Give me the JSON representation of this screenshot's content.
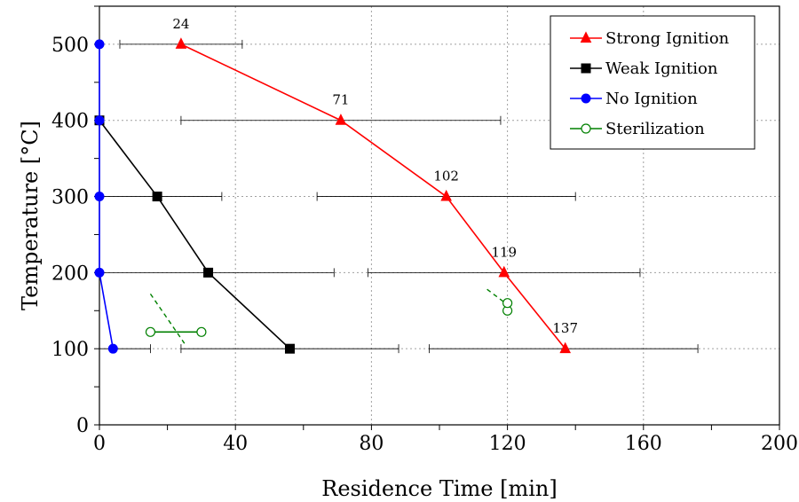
{
  "chart_data": {
    "type": "line",
    "title": "",
    "xlabel": "Residence Time [min]",
    "ylabel": "Temperature [°C]",
    "xlim": [
      0,
      200
    ],
    "ylim": [
      0,
      550
    ],
    "xticks": [
      0,
      40,
      80,
      120,
      160,
      200
    ],
    "yticks": [
      0,
      100,
      200,
      300,
      400,
      500
    ],
    "grid": true,
    "legend_position": "top-right",
    "series": [
      {
        "name": "Strong Ignition",
        "color": "#ff0000",
        "marker": "triangle",
        "points": [
          {
            "x": 24,
            "y": 500,
            "label": "24",
            "xerr": [
              6,
              42
            ]
          },
          {
            "x": 71,
            "y": 400,
            "label": "71",
            "xerr": [
              24,
              118
            ]
          },
          {
            "x": 102,
            "y": 300,
            "label": "102",
            "xerr": [
              64,
              140
            ]
          },
          {
            "x": 119,
            "y": 200,
            "label": "119",
            "xerr": [
              79,
              159
            ]
          },
          {
            "x": 137,
            "y": 100,
            "label": "137",
            "xerr": [
              97,
              176
            ]
          }
        ]
      },
      {
        "name": "Weak Ignition",
        "color": "#000000",
        "marker": "square",
        "points": [
          {
            "x": 0,
            "y": 400
          },
          {
            "x": 17,
            "y": 300,
            "xerr": [
              0,
              36
            ]
          },
          {
            "x": 32,
            "y": 200,
            "xerr": [
              0,
              69
            ]
          },
          {
            "x": 56,
            "y": 100,
            "xerr": [
              24,
              88
            ]
          }
        ]
      },
      {
        "name": "No Ignition",
        "color": "#0000ff",
        "marker": "circle",
        "points": [
          {
            "x": 0,
            "y": 500
          },
          {
            "x": 0,
            "y": 400
          },
          {
            "x": 0,
            "y": 300
          },
          {
            "x": 0,
            "y": 200
          },
          {
            "x": 4,
            "y": 100,
            "xerr": [
              0,
              15
            ]
          }
        ]
      },
      {
        "name": "Sterilization",
        "color": "#008000",
        "marker": "open-circle",
        "points": [
          {
            "x": 15,
            "y": 122
          },
          {
            "x": 30,
            "y": 122
          },
          {
            "x": 120,
            "y": 150
          },
          {
            "x": 120,
            "y": 160
          }
        ],
        "solid_segments": [
          [
            [
              15,
              122
            ],
            [
              30,
              122
            ]
          ],
          [
            [
              120,
              150
            ],
            [
              120,
              160
            ]
          ]
        ],
        "dashed_segments": [
          [
            [
              15,
              172
            ],
            [
              25,
              107
            ]
          ],
          [
            [
              114,
              178
            ],
            [
              120,
              158
            ]
          ]
        ]
      }
    ]
  }
}
